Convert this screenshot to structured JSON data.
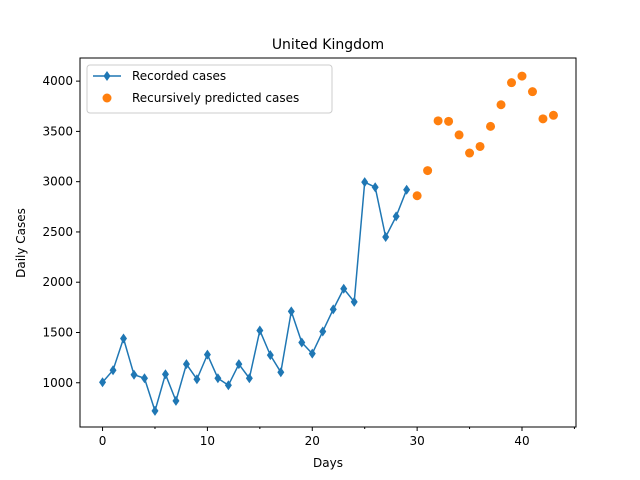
{
  "chart_data": {
    "type": "line",
    "title": "United Kingdom",
    "xlabel": "Days",
    "ylabel": "Daily Cases",
    "xlim": [
      -2.15,
      45.15
    ],
    "ylim": [
      560,
      4230
    ],
    "x_ticks": [
      0,
      10,
      20,
      30,
      40
    ],
    "x_minor_ticks": [
      5,
      15,
      25,
      35,
      45
    ],
    "y_ticks": [
      1000,
      1500,
      2000,
      2500,
      3000,
      3500,
      4000
    ],
    "grid": false,
    "legend_position": "upper-left",
    "series": [
      {
        "name": "Recorded cases",
        "style": "line-diamond",
        "color": "#1f77b4",
        "x": [
          0,
          1,
          2,
          3,
          4,
          5,
          6,
          7,
          8,
          9,
          10,
          11,
          12,
          13,
          14,
          15,
          16,
          17,
          18,
          19,
          20,
          21,
          22,
          23,
          24,
          25,
          26,
          27,
          28,
          29
        ],
        "y": [
          1005,
          1125,
          1440,
          1080,
          1045,
          720,
          1085,
          820,
          1185,
          1035,
          1280,
          1045,
          975,
          1185,
          1045,
          1520,
          1275,
          1105,
          1710,
          1400,
          1290,
          1510,
          1730,
          1935,
          1805,
          2995,
          2945,
          2450,
          2655,
          2920
        ]
      },
      {
        "name": "Recursively predicted cases",
        "style": "scatter-circle",
        "color": "#ff7f0e",
        "x": [
          30,
          31,
          32,
          33,
          34,
          35,
          36,
          37,
          38,
          39,
          40,
          41,
          42,
          43
        ],
        "y": [
          2860,
          3110,
          3605,
          3600,
          3465,
          3285,
          3350,
          3550,
          3765,
          3985,
          4050,
          3895,
          3625,
          3660
        ]
      }
    ]
  }
}
